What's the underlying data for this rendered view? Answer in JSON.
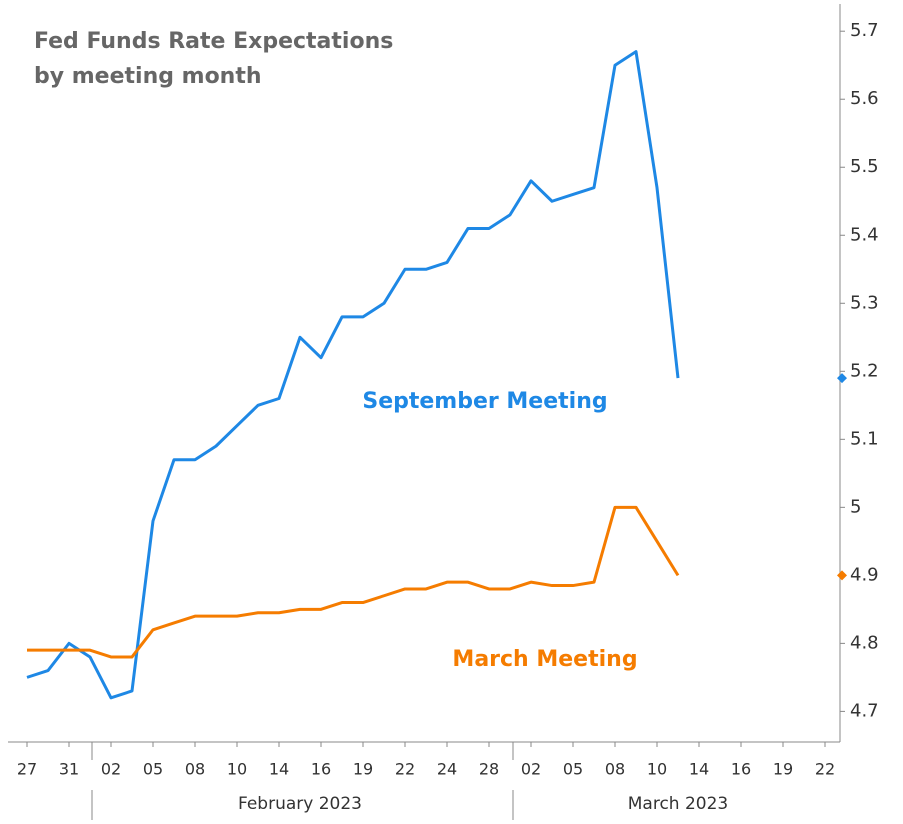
{
  "chart_data": {
    "type": "line",
    "title": [
      "Fed Funds Rate Expectations",
      "by meeting month"
    ],
    "annotations": [
      "September Meeting",
      "March Meeting"
    ],
    "x_groups": [
      "February 2023",
      "March 2023"
    ],
    "categories": [
      "27",
      null,
      "31",
      null,
      "02",
      null,
      "05",
      null,
      "08",
      null,
      "10",
      null,
      "14",
      null,
      "16",
      null,
      "19",
      null,
      "22",
      null,
      "24",
      null,
      "28",
      null,
      "02",
      null,
      "05",
      null,
      "08",
      null,
      "10",
      null,
      "14",
      null,
      "16",
      null,
      "19",
      null,
      "22"
    ],
    "series": [
      {
        "name": "September Meeting",
        "color": "#1e88e5",
        "values": [
          4.75,
          4.76,
          4.8,
          4.78,
          4.72,
          4.73,
          4.98,
          5.07,
          5.07,
          5.09,
          5.12,
          5.15,
          5.16,
          5.25,
          5.22,
          5.28,
          5.28,
          5.3,
          5.35,
          5.35,
          5.36,
          5.41,
          5.41,
          5.43,
          5.48,
          5.45,
          5.46,
          5.47,
          5.65,
          5.67,
          5.47,
          5.19,
          null,
          null,
          null,
          null,
          null,
          null,
          null
        ]
      },
      {
        "name": "March Meeting",
        "color": "#f57c00",
        "values": [
          4.79,
          4.79,
          4.79,
          4.79,
          4.78,
          4.78,
          4.82,
          4.83,
          4.84,
          4.84,
          4.84,
          4.845,
          4.845,
          4.85,
          4.85,
          4.86,
          4.86,
          4.87,
          4.88,
          4.88,
          4.89,
          4.89,
          4.88,
          4.88,
          4.89,
          4.885,
          4.885,
          4.89,
          5.0,
          5.0,
          4.95,
          4.9,
          null,
          null,
          null,
          null,
          null,
          null,
          null
        ]
      }
    ],
    "ylim": [
      4.655,
      5.74
    ],
    "yticks": [
      4.7,
      4.8,
      4.9,
      5,
      5.1,
      5.2,
      5.3,
      5.4,
      5.5,
      5.6,
      5.7
    ],
    "y_axis_side": "right",
    "grid": false
  }
}
